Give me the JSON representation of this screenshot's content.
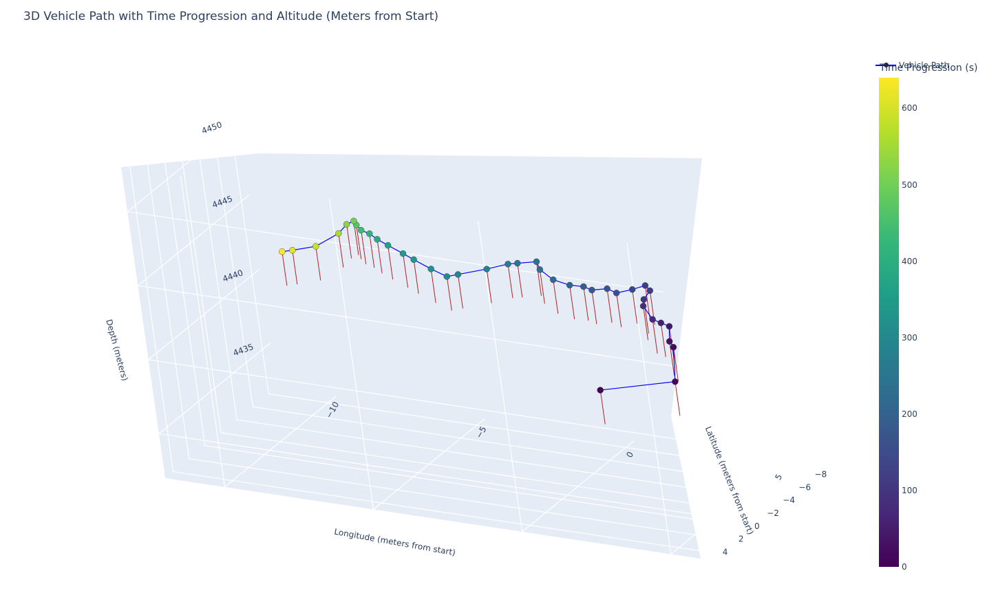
{
  "title": "3D Vehicle Path with Time Progression and Altitude (Meters from Start)",
  "legend": {
    "label": "Vehicle Path",
    "line_color": "#0000ff"
  },
  "colorbar": {
    "title": "Time Progression (s)",
    "colorscale": "viridis",
    "range": [
      0,
      640
    ],
    "ticks": [
      "0",
      "100",
      "200",
      "300",
      "400",
      "500",
      "600"
    ]
  },
  "axes": {
    "x": {
      "label": "Longitude (meters from start)",
      "ticks": [
        "−10",
        "−5",
        "0",
        "5"
      ]
    },
    "y": {
      "label": "Latitude (meters from start)",
      "ticks": [
        "−8",
        "−6",
        "−4",
        "−2",
        "0",
        "2",
        "4"
      ]
    },
    "z": {
      "label": "Depth (meters)",
      "ticks": [
        "4450",
        "4445",
        "4440",
        "4435"
      ]
    }
  },
  "colors": {
    "grid_bg": "#e5ecf6",
    "stem": "#b22222",
    "path": "#0000ff"
  },
  "chart_data": {
    "type": "scatter3d",
    "title": "3D Vehicle Path with Time Progression and Altitude (Meters from Start)",
    "xlabel": "Longitude (meters from start)",
    "ylabel": "Latitude (meters from start)",
    "zlabel": "Depth (meters)",
    "xlim": [
      -12,
      6
    ],
    "ylim": [
      -9,
      5
    ],
    "zlim": [
      4432,
      4453
    ],
    "color_label": "Time Progression (s)",
    "series": [
      {
        "name": "Vehicle Path",
        "points": [
          {
            "x": 2.0,
            "y": 0.5,
            "z": 4440.2,
            "t": 0
          },
          {
            "x": 4.0,
            "y": -1.5,
            "z": 4440.5,
            "t": 10
          },
          {
            "x": 3.5,
            "y": -3.5,
            "z": 4441.8,
            "t": 20
          },
          {
            "x": 3.3,
            "y": -3.8,
            "z": 4442.0,
            "t": 30
          },
          {
            "x": 3.0,
            "y": -5.0,
            "z": 4442.4,
            "t": 40
          },
          {
            "x": 2.7,
            "y": -5.1,
            "z": 4442.5,
            "t": 55
          },
          {
            "x": 2.4,
            "y": -5.2,
            "z": 4442.6,
            "t": 70
          },
          {
            "x": 1.9,
            "y": -6.0,
            "z": 4443.0,
            "t": 85
          },
          {
            "x": 1.8,
            "y": -6.5,
            "z": 4443.2,
            "t": 100
          },
          {
            "x": 1.9,
            "y": -7.0,
            "z": 4443.6,
            "t": 115
          },
          {
            "x": 1.7,
            "y": -7.2,
            "z": 4443.8,
            "t": 125
          },
          {
            "x": 1.3,
            "y": -7.0,
            "z": 4443.5,
            "t": 140
          },
          {
            "x": 0.8,
            "y": -6.8,
            "z": 4443.2,
            "t": 155
          },
          {
            "x": 0.5,
            "y": -6.8,
            "z": 4443.4,
            "t": 165
          },
          {
            "x": 0.0,
            "y": -6.7,
            "z": 4443.2,
            "t": 180
          },
          {
            "x": -0.3,
            "y": -6.8,
            "z": 4443.3,
            "t": 190
          },
          {
            "x": -0.8,
            "y": -6.9,
            "z": 4443.2,
            "t": 205
          },
          {
            "x": -1.4,
            "y": -7.1,
            "z": 4443.3,
            "t": 220
          },
          {
            "x": -1.9,
            "y": -7.4,
            "z": 4443.7,
            "t": 235
          },
          {
            "x": -2.1,
            "y": -7.8,
            "z": 4444.0,
            "t": 245
          },
          {
            "x": -2.7,
            "y": -7.6,
            "z": 4443.8,
            "t": 255
          },
          {
            "x": -3.0,
            "y": -7.5,
            "z": 4443.7,
            "t": 265
          },
          {
            "x": -3.6,
            "y": -7.0,
            "z": 4443.4,
            "t": 280
          },
          {
            "x": -4.4,
            "y": -6.3,
            "z": 4443.1,
            "t": 295
          },
          {
            "x": -4.7,
            "y": -6.0,
            "z": 4443.0,
            "t": 305
          },
          {
            "x": -5.3,
            "y": -6.3,
            "z": 4443.2,
            "t": 320
          },
          {
            "x": -6.0,
            "y": -6.8,
            "z": 4443.4,
            "t": 335
          },
          {
            "x": -6.4,
            "y": -7.0,
            "z": 4443.6,
            "t": 350
          },
          {
            "x": -7.0,
            "y": -7.4,
            "z": 4443.8,
            "t": 370
          },
          {
            "x": -7.4,
            "y": -7.6,
            "z": 4444.0,
            "t": 390
          },
          {
            "x": -7.7,
            "y": -7.8,
            "z": 4444.2,
            "t": 410
          },
          {
            "x": -8.0,
            "y": -7.9,
            "z": 4444.3,
            "t": 440
          },
          {
            "x": -8.2,
            "y": -8.1,
            "z": 4444.5,
            "t": 470
          },
          {
            "x": -8.3,
            "y": -8.2,
            "z": 4444.7,
            "t": 500
          },
          {
            "x": -8.5,
            "y": -8.0,
            "z": 4444.5,
            "t": 530
          },
          {
            "x": -8.7,
            "y": -7.6,
            "z": 4444.0,
            "t": 560
          },
          {
            "x": -9.3,
            "y": -6.8,
            "z": 4443.3,
            "t": 590
          },
          {
            "x": -10.0,
            "y": -6.4,
            "z": 4443.0,
            "t": 615
          },
          {
            "x": -10.3,
            "y": -6.2,
            "z": 4442.9,
            "t": 640
          }
        ]
      }
    ]
  }
}
